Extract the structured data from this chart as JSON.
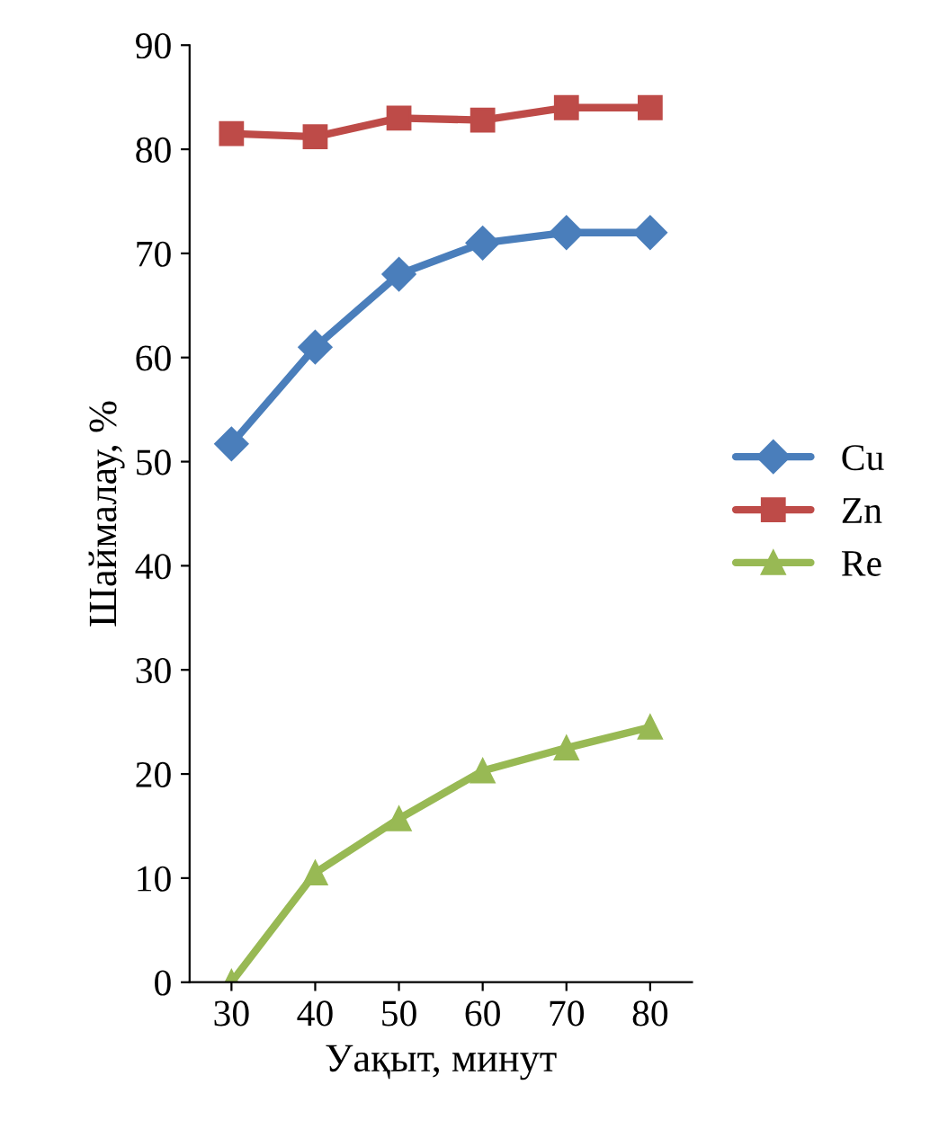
{
  "chart_data": {
    "type": "line",
    "xlabel": "Уақыт, минут",
    "ylabel": "Шаймалау, %",
    "categories": [
      "30",
      "40",
      "50",
      "60",
      "70",
      "80"
    ],
    "series": [
      {
        "name": "Cu",
        "color": "#4a7ebb",
        "marker": "diamond",
        "values": [
          51.7,
          61,
          68,
          71,
          72,
          72
        ]
      },
      {
        "name": "Zn",
        "color": "#be4b48",
        "marker": "square",
        "values": [
          81.5,
          81.2,
          83,
          82.8,
          84,
          84
        ]
      },
      {
        "name": "Re",
        "color": "#98b954",
        "marker": "triangle",
        "values": [
          0,
          10.5,
          15.7,
          20.3,
          22.5,
          24.5
        ]
      }
    ],
    "ylim": [
      0,
      90
    ],
    "yticks": [
      0,
      10,
      20,
      30,
      40,
      50,
      60,
      70,
      80,
      90
    ],
    "grid": false,
    "legend": "right"
  }
}
